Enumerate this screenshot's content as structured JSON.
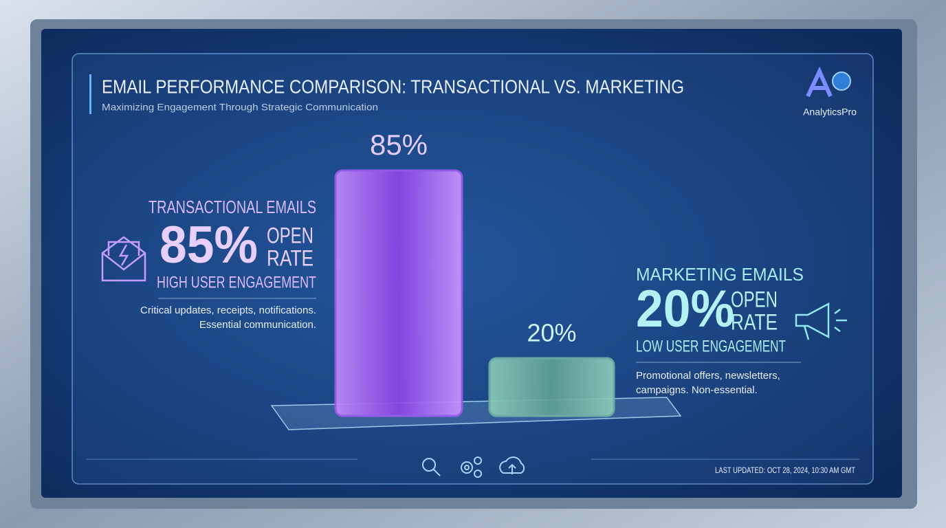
{
  "chart_data": {
    "type": "bar",
    "title": "EMAIL PERFORMANCE COMPARISON: TRANSACTIONAL VS. MARKETING",
    "subtitle": "Maximizing Engagement Through Strategic Communication",
    "categories": [
      "TRANSACTIONAL EMAILS",
      "MARKETING EMAILS"
    ],
    "values": [
      85,
      20
    ],
    "value_labels": [
      "85%",
      "20%"
    ],
    "colors": [
      "#9d5cf0",
      "#6fb3a6"
    ]
  },
  "panels": [
    {
      "stat": "85%",
      "stat_label": [
        "OPEN",
        "RATE"
      ],
      "engagement": "HIGH USER ENGAGEMENT",
      "description": [
        "Critical updates, receipts, notifications.",
        "Essential communication."
      ]
    },
    {
      "stat": "20%",
      "stat_label": [
        "OPEN",
        "RATE"
      ],
      "engagement": "LOW USER ENGAGEMENT",
      "description": [
        "Promotional offers, newsletters,",
        "campaigns. Non-essential."
      ]
    }
  ],
  "brand": "AnalyticsPro",
  "footer": "LAST UPDATED: OCT 28, 2024, 10:30 AM GMT"
}
